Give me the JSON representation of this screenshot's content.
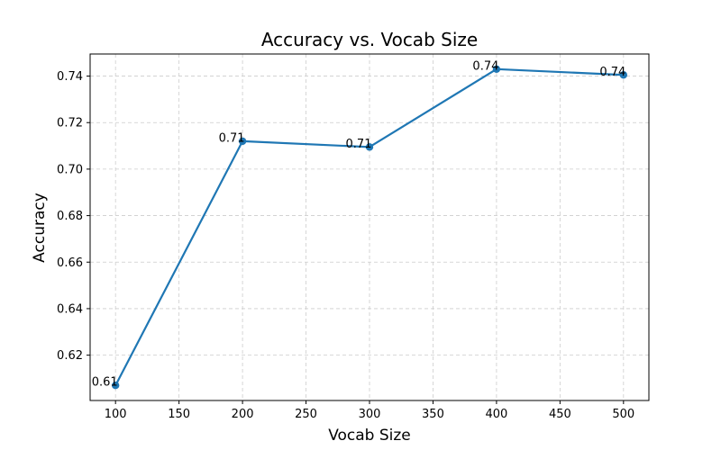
{
  "colors": {
    "series": "#1f77b4",
    "grid": "#cccccc",
    "axis": "#000000"
  },
  "chart_data": {
    "type": "line",
    "title": "Accuracy vs. Vocab Size",
    "xlabel": "Vocab Size",
    "ylabel": "Accuracy",
    "x": [
      100,
      200,
      300,
      400,
      500
    ],
    "series": [
      {
        "name": "Accuracy",
        "values": [
          0.607,
          0.712,
          0.7095,
          0.743,
          0.7405
        ]
      }
    ],
    "data_labels": [
      "0.61",
      "0.71",
      "0.71",
      "0.74",
      "0.74"
    ],
    "xlim": [
      80,
      520
    ],
    "ylim": [
      0.6005,
      0.7495
    ],
    "xticks": [
      100,
      150,
      200,
      250,
      300,
      350,
      400,
      450,
      500
    ],
    "xtick_labels": [
      "100",
      "150",
      "200",
      "250",
      "300",
      "350",
      "400",
      "450",
      "500"
    ],
    "yticks": [
      0.62,
      0.64,
      0.66,
      0.68,
      0.7,
      0.72,
      0.74
    ],
    "ytick_labels": [
      "0.62",
      "0.64",
      "0.66",
      "0.68",
      "0.70",
      "0.72",
      "0.74"
    ],
    "grid": true,
    "grid_style": "dashed",
    "marker": "circle"
  }
}
